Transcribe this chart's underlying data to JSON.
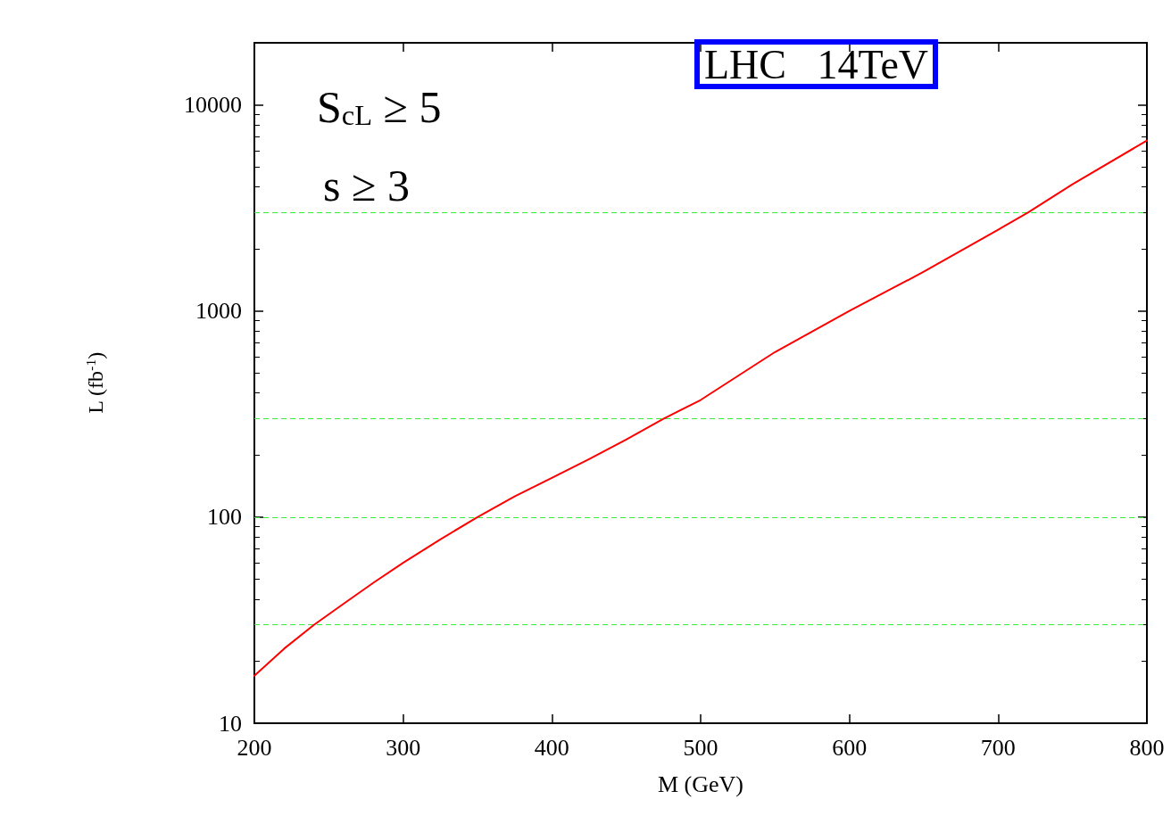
{
  "chart_data": {
    "type": "line",
    "xlabel": "M (GeV)",
    "ylabel": "L (fb$^{-1}$)",
    "x": [
      200,
      220,
      240,
      260,
      280,
      300,
      325,
      350,
      375,
      400,
      425,
      450,
      475,
      500,
      550,
      600,
      650,
      700,
      720,
      750,
      800
    ],
    "series": [
      {
        "color": "#ff0000",
        "values": [
          17,
          23,
          30,
          38,
          48,
          60,
          78,
          100,
          126,
          155,
          191,
          238,
          300,
          370,
          632,
          1000,
          1550,
          2480,
          3000,
          4120,
          6710
        ]
      }
    ],
    "log": "y",
    "xlim": [
      200,
      800
    ],
    "xticks": [
      200,
      300,
      400,
      500,
      600,
      700,
      800
    ],
    "ylim": [
      10,
      20000
    ],
    "yticks": [
      10,
      100,
      1000,
      10000
    ],
    "grid": false,
    "marker": "none",
    "line_style": "solid",
    "ref_lines": [
      {
        "axis": "y",
        "value": 30,
        "color": "#33ee33",
        "line_style": "dashed"
      },
      {
        "axis": "y",
        "value": 100,
        "color": "#33ee33",
        "line_style": "dashed"
      },
      {
        "axis": "y",
        "value": 300,
        "color": "#33ee33",
        "line_style": "dashed"
      },
      {
        "axis": "y",
        "value": 3000,
        "color": "#33ee33",
        "line_style": "dashed"
      }
    ],
    "annotations": [
      "S$_{cL}$ ≥ 5",
      "s ≥ 3",
      "LHC   14TeV"
    ]
  }
}
